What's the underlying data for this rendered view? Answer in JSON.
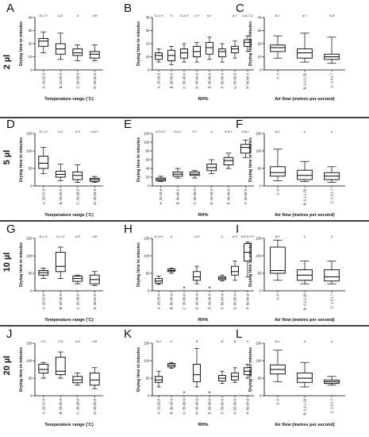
{
  "figure": {
    "rows": [
      {
        "label": "2 µl",
        "panels": [
          "A",
          "B",
          "C"
        ]
      },
      {
        "label": "5 µl",
        "panels": [
          "D",
          "E",
          "F"
        ]
      },
      {
        "label": "10 µl",
        "panels": [
          "G",
          "H",
          "I"
        ]
      },
      {
        "label": "20 µl",
        "panels": [
          "J",
          "K",
          "L"
        ]
      }
    ]
  },
  "chart_data": [
    {
      "panel": "A",
      "type": "box",
      "ylabel": "Drying time in minutes",
      "xlabel": "Temperature range (˚C)",
      "ylim": [
        0,
        40
      ],
      "yticks": [
        0,
        10,
        20,
        30,
        40
      ],
      "categories": [
        "A: 20-22.9",
        "B: 23-25.9",
        "C: 26-28.9",
        "D: 29-31.9"
      ],
      "boxes": [
        [
          13,
          18,
          22,
          24,
          29
        ],
        [
          8,
          12,
          16,
          20,
          28
        ],
        [
          7,
          11,
          13,
          16,
          19
        ],
        [
          7,
          9,
          12,
          14,
          19
        ]
      ],
      "annotations": [
        "B,C,D",
        "A,D",
        "A",
        "A,B"
      ]
    },
    {
      "panel": "B",
      "type": "box",
      "ylabel": "Drying time in minutes",
      "xlabel": "RH%",
      "ylim": [
        0,
        40
      ],
      "yticks": [
        0,
        10,
        20,
        30,
        40
      ],
      "categories": [
        "A: 25-29.9",
        "B: 30-34.9",
        "C: 35-39.9",
        "D: 40-44.9",
        "E: 45-49.9",
        "F: 50-54.9",
        "G: 55-59.9",
        "H: 60-64.9"
      ],
      "boxes": [
        [
          6,
          8,
          11,
          13,
          16
        ],
        [
          4,
          7,
          11,
          15,
          18
        ],
        [
          6,
          9,
          13,
          16,
          20
        ],
        [
          6,
          10,
          14,
          18,
          21
        ],
        [
          8,
          12,
          17,
          21,
          25
        ],
        [
          6,
          10,
          14,
          16,
          20
        ],
        [
          9,
          13,
          16,
          18,
          22
        ],
        [
          14,
          18,
          21,
          23,
          26
        ]
      ],
      "annotations": [
        "E,G,H",
        "H",
        "E,G,H",
        "C,H",
        "A,C",
        "",
        "A,C",
        "A,B,C,D"
      ]
    },
    {
      "panel": "C",
      "type": "box",
      "ylabel": "Drying time in minutes",
      "xlabel": "Air flow (metres per second)",
      "ylim": [
        0,
        40
      ],
      "yticks": [
        0,
        10,
        20,
        30,
        40
      ],
      "categories": [
        "A: 0",
        "B: 0.1-1.29",
        "C: 1.3-1.7"
      ],
      "boxes": [
        [
          9,
          14,
          17,
          19,
          26
        ],
        [
          6,
          9,
          13,
          16,
          28
        ],
        [
          5,
          8,
          10,
          12,
          25
        ]
      ],
      "annotations": [
        "B,C",
        "A,C",
        "A,B"
      ]
    },
    {
      "panel": "D",
      "type": "box",
      "ylabel": "Drying time in minutes",
      "xlabel": "Temperature range (˚C)",
      "ylim": [
        0,
        150
      ],
      "yticks": [
        0,
        50,
        100,
        150
      ],
      "categories": [
        "A: 20-22.9",
        "B: 23-25.9",
        "C: 26-28.9",
        "D: 29-31.9"
      ],
      "boxes": [
        [
          35,
          50,
          65,
          85,
          110
        ],
        [
          15,
          25,
          33,
          42,
          62
        ],
        [
          10,
          18,
          30,
          40,
          60
        ],
        [
          10,
          13,
          18,
          22,
          27
        ]
      ],
      "annotations": [
        "B,C,D",
        "A,D",
        "A,D",
        "A,B,C"
      ]
    },
    {
      "panel": "E",
      "type": "box",
      "ylabel": "Drying time in minutes",
      "xlabel": "RH%",
      "ylim": [
        0,
        120
      ],
      "yticks": [
        0,
        20,
        40,
        60,
        80,
        100,
        120
      ],
      "categories": [
        "A: 25-29.9",
        "B: 30-34.9",
        "C: 35-39.9",
        "D: 40-44.9",
        "E: 45-49.9",
        "F: 50-54.9"
      ],
      "boxes": [
        [
          10,
          12,
          15,
          18,
          22
        ],
        [
          18,
          22,
          27,
          32,
          40
        ],
        [
          18,
          24,
          27,
          32,
          35
        ],
        [
          28,
          35,
          42,
          50,
          60
        ],
        [
          40,
          48,
          58,
          65,
          75
        ],
        [
          65,
          75,
          88,
          95,
          105
        ]
      ],
      "annotations": [
        "B,D,E,F",
        "A,E,F",
        "E,F",
        "A",
        "A,B,C",
        "A,B,C"
      ]
    },
    {
      "panel": "F",
      "type": "box",
      "ylabel": "Drying time in minutes",
      "xlabel": "Air flow (metres per second)",
      "ylim": [
        0,
        150
      ],
      "yticks": [
        0,
        50,
        100,
        150
      ],
      "categories": [
        "A: 0",
        "B: 0.1-1.29",
        "C: 1.3-1.7"
      ],
      "boxes": [
        [
          15,
          28,
          38,
          55,
          105
        ],
        [
          12,
          18,
          30,
          45,
          70
        ],
        [
          10,
          18,
          28,
          38,
          55
        ]
      ],
      "annotations": [
        "B,C",
        "A",
        "A"
      ]
    },
    {
      "panel": "G",
      "type": "box",
      "ylabel": "Drying time in minutes",
      "xlabel": "Temperature range (˚C)",
      "ylim": [
        0,
        150
      ],
      "yticks": [
        0,
        50,
        100,
        150
      ],
      "categories": [
        "A: 20-22.9",
        "B: 23-25.9",
        "C: 26-28.9",
        "D: 29-31.9"
      ],
      "boxes": [
        [
          35,
          45,
          52,
          58,
          65
        ],
        [
          35,
          55,
          70,
          110,
          125
        ],
        [
          20,
          27,
          35,
          42,
          45
        ],
        [
          15,
          20,
          32,
          45,
          55
        ]
      ],
      "annotations": [
        "B,C,D",
        "A,C,D",
        "A,B",
        "A,B"
      ]
    },
    {
      "panel": "H",
      "type": "box",
      "ylabel": "Drying time in minutes",
      "xlabel": "RH%",
      "ylim": [
        0,
        150
      ],
      "yticks": [
        0,
        50,
        100,
        150
      ],
      "categories": [
        "A: 25-29.9",
        "B: 30-34.9",
        "C: 35-39.9",
        "D: 40-44.9",
        "E: 45-49.9",
        "F: 50-54.9",
        "G: 55-59.9",
        "H: 60-64.9"
      ],
      "boxes": [
        [
          18,
          22,
          28,
          35,
          42
        ],
        [
          50,
          55,
          58,
          62,
          65
        ],
        null,
        [
          20,
          30,
          40,
          55,
          70
        ],
        null,
        [
          28,
          32,
          36,
          40,
          45
        ],
        [
          30,
          45,
          55,
          70,
          85
        ],
        [
          40,
          85,
          110,
          135,
          140
        ]
      ],
      "stars": [
        2,
        4
      ],
      "annotations": [
        "E,G,H",
        "A",
        "",
        "G,H",
        "",
        "A",
        "A,D",
        "A,B,D,F,G"
      ]
    },
    {
      "panel": "I",
      "type": "box",
      "ylabel": "Drying time in minutes",
      "xlabel": "Air flow (metres per second)",
      "ylim": [
        0,
        150
      ],
      "yticks": [
        0,
        50,
        100,
        150
      ],
      "categories": [
        "A: 0",
        "B: 0.1-1.29",
        "C: 1.3-1.7"
      ],
      "boxes": [
        [
          30,
          50,
          58,
          125,
          145
        ],
        [
          20,
          30,
          45,
          60,
          85
        ],
        [
          20,
          28,
          40,
          60,
          85
        ]
      ],
      "annotations": [
        "B,C",
        "A",
        "A"
      ]
    },
    {
      "panel": "J",
      "type": "box",
      "ylabel": "Drying time in minutes",
      "xlabel": "Temperature range (˚C)",
      "ylim": [
        0,
        150
      ],
      "yticks": [
        0,
        50,
        100,
        150
      ],
      "categories": [
        "A: 20-22.9",
        "B: 23-25.9",
        "C: 26-28.9",
        "D: 29-31.9"
      ],
      "boxes": [
        [
          50,
          65,
          75,
          90,
          95
        ],
        [
          50,
          60,
          70,
          110,
          125
        ],
        [
          30,
          37,
          45,
          55,
          65
        ],
        [
          20,
          30,
          45,
          65,
          80
        ]
      ],
      "annotations": [
        "C,D",
        "C,D",
        "A,B",
        "A,B"
      ]
    },
    {
      "panel": "K",
      "type": "box",
      "ylabel": "Drying time in minutes",
      "xlabel": "RH%",
      "ylim": [
        0,
        150
      ],
      "yticks": [
        0,
        50,
        100,
        150
      ],
      "categories": [
        "A: 25-29.9",
        "B: 30-34.9",
        "C: 35-39.9",
        "D: 40-44.9",
        "E: 45-49.9",
        "F: 50-54.9",
        "G: 55-59.9",
        "H: 60-64.9"
      ],
      "boxes": [
        [
          25,
          38,
          45,
          55,
          70
        ],
        [
          78,
          82,
          87,
          92,
          95
        ],
        null,
        [
          25,
          40,
          60,
          90,
          135
        ],
        null,
        [
          35,
          42,
          50,
          58,
          70
        ],
        [
          38,
          45,
          55,
          65,
          80
        ],
        [
          50,
          60,
          70,
          80,
          90
        ]
      ],
      "stars": [
        2,
        4
      ],
      "annotations": [
        "B,H",
        "A",
        "",
        "B",
        "",
        "B",
        "B",
        "A"
      ]
    },
    {
      "panel": "L",
      "type": "box",
      "ylabel": "Drying time in minutes",
      "xlabel": "Air flow (metres per second)",
      "ylim": [
        0,
        150
      ],
      "yticks": [
        0,
        50,
        100,
        150
      ],
      "categories": [
        "A: 0",
        "B: 0.1-1.29",
        "C: 1.3-1.7"
      ],
      "boxes": [
        [
          40,
          62,
          75,
          88,
          130
        ],
        [
          25,
          38,
          50,
          65,
          95
        ],
        [
          30,
          35,
          40,
          45,
          55
        ]
      ],
      "annotations": [
        "B,C",
        "A",
        "A"
      ]
    }
  ]
}
